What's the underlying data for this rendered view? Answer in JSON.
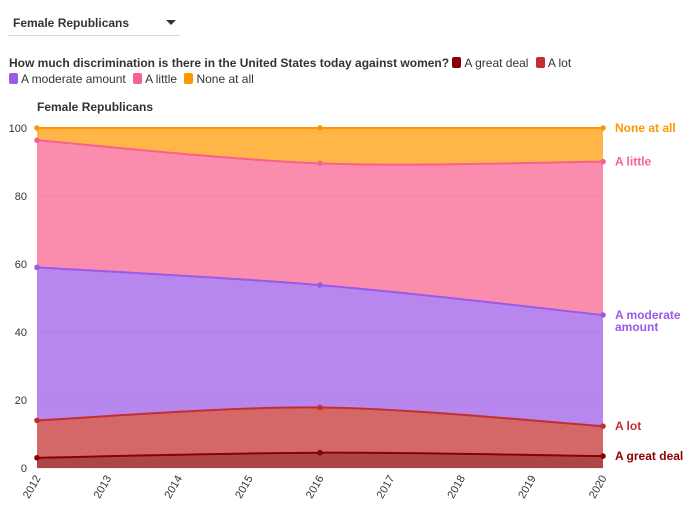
{
  "filter": {
    "selected": "Female Republicans"
  },
  "question": "How much discrimination is there in the United States today against women?",
  "chart_data": {
    "type": "area",
    "stacked": true,
    "title": "Female Republicans",
    "x": [
      2012,
      2016,
      2020
    ],
    "xticks": [
      "2012",
      "2013",
      "2014",
      "2015",
      "2016",
      "2017",
      "2018",
      "2019",
      "2020"
    ],
    "yticks": [
      "0",
      "20",
      "40",
      "60",
      "80",
      "100"
    ],
    "ylim": [
      0,
      100
    ],
    "series": [
      {
        "name": "A great deal",
        "values": [
          3,
          4.5,
          3.5
        ],
        "color": "#8b0000"
      },
      {
        "name": "A lot",
        "values": [
          11,
          13.3,
          8.8
        ],
        "color": "#c42e2e"
      },
      {
        "name": "A moderate amount",
        "values": [
          45,
          36,
          32.7
        ],
        "color": "#9b59e8"
      },
      {
        "name": "A little",
        "values": [
          37.4,
          35.8,
          45.1
        ],
        "color": "#f8618f"
      },
      {
        "name": "None at all",
        "values": [
          3.6,
          10.4,
          9.9
        ],
        "color": "#ff9800"
      }
    ],
    "end_labels": [
      {
        "lines": [
          "A great deal"
        ]
      },
      {
        "lines": [
          "A lot"
        ]
      },
      {
        "lines": [
          "A moderate",
          "amount"
        ]
      },
      {
        "lines": [
          "A little"
        ]
      },
      {
        "lines": [
          "None at all"
        ]
      }
    ]
  }
}
